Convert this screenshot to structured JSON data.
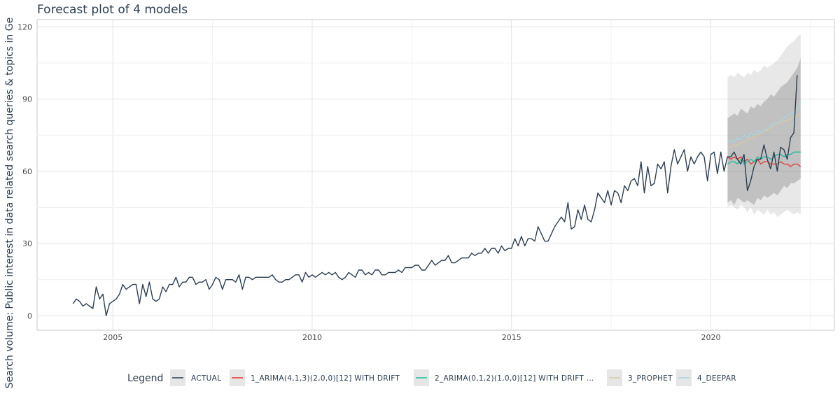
{
  "chart_data": {
    "type": "line",
    "title": "Forecast plot of 4 models",
    "xlabel": "",
    "ylabel": "Search volume: Public interest in data related search queries & topics in Ge",
    "xlim": [
      2003.1,
      2023.1
    ],
    "ylim": [
      -6,
      123
    ],
    "xticks": [
      2005,
      2010,
      2015,
      2020
    ],
    "yticks": [
      0,
      30,
      60,
      90,
      120
    ],
    "grid": true,
    "legend_position": "bottom",
    "legend_title": "Legend",
    "actual": {
      "name": "ACTUAL",
      "color": "#2c3e50",
      "start": 2004.0,
      "step": 0.0833333,
      "values": [
        5,
        7,
        6,
        4,
        5,
        4,
        3,
        12,
        7,
        9,
        0,
        5,
        6,
        7,
        9,
        13,
        11,
        12,
        13,
        13,
        5,
        13,
        8,
        14,
        7,
        6,
        7,
        12,
        10,
        13,
        13,
        16,
        12,
        14,
        14,
        16,
        16,
        13,
        14,
        14,
        15,
        11,
        13,
        16,
        15,
        11,
        15,
        15,
        15,
        14,
        17,
        11,
        16,
        16,
        15,
        16,
        16,
        16,
        16,
        16,
        17,
        15,
        14,
        14,
        15,
        15,
        16,
        17,
        17,
        14,
        18,
        16,
        17,
        16,
        17,
        18,
        17,
        18,
        17,
        18,
        16,
        15,
        16,
        18,
        17,
        16,
        19,
        19,
        17,
        18,
        17,
        19,
        19,
        17,
        17,
        18,
        18,
        18,
        19,
        18,
        20,
        20,
        20,
        21,
        21,
        19,
        19,
        21,
        23,
        21,
        22,
        23,
        23,
        25,
        22,
        22,
        23,
        24,
        24,
        24,
        26,
        25,
        26,
        26,
        28,
        26,
        28,
        28,
        26,
        29,
        27,
        28,
        28,
        32,
        29,
        33,
        29,
        32,
        32,
        31,
        37,
        34,
        31,
        31,
        34,
        37,
        39,
        41,
        39,
        47,
        36,
        37,
        44,
        40,
        46,
        40,
        39,
        44,
        51,
        49,
        47,
        52,
        46,
        52,
        51,
        47,
        54,
        52,
        56,
        57,
        54,
        64,
        51,
        62,
        54,
        55,
        63,
        61,
        64,
        51,
        62,
        69,
        63,
        66,
        69,
        60,
        66,
        63,
        66,
        68,
        66,
        56,
        67,
        68,
        59,
        68,
        60,
        66,
        66,
        68,
        65,
        63,
        67,
        52,
        56,
        62,
        65,
        65,
        71,
        65,
        61,
        68,
        60,
        70,
        69,
        65,
        74,
        76,
        100
      ]
    },
    "forecast_start": 2020.42,
    "forecast_step": 0.0833333,
    "bands_outer": {
      "upper": [
        99,
        100,
        99,
        101,
        100,
        99,
        101,
        100,
        102,
        101,
        102,
        104,
        103,
        104,
        105,
        106,
        108,
        110,
        112,
        113,
        114,
        116,
        117
      ],
      "lower": [
        45,
        46,
        45,
        44,
        46,
        45,
        43,
        45,
        42,
        44,
        43,
        42,
        44,
        42,
        43,
        41,
        42,
        43,
        44,
        43,
        42,
        43,
        42
      ]
    },
    "bands_inner": {
      "upper": [
        82,
        83,
        84,
        83,
        86,
        85,
        84,
        87,
        86,
        88,
        87,
        89,
        90,
        92,
        91,
        93,
        95,
        96,
        97,
        99,
        101,
        103,
        107
      ],
      "lower": [
        47,
        48,
        46,
        49,
        48,
        47,
        48,
        47,
        46,
        49,
        48,
        50,
        49,
        50,
        51,
        50,
        52,
        54,
        53,
        55,
        55,
        56,
        57
      ]
    },
    "series": [
      {
        "name": "1_ARIMA(4,1,3)(2,0,0)[12] WITH DRIFT",
        "color": "#e3342f",
        "values": [
          66,
          65,
          66,
          65,
          66,
          64,
          65,
          63,
          64,
          65,
          63,
          64,
          64,
          63,
          63,
          63,
          64,
          63,
          63,
          62,
          63,
          63,
          62
        ]
      },
      {
        "name": "2_ARIMA(0,1,2)(1,0,0)[12] WITH DRIFT ...",
        "color": "#18bc9c",
        "values": [
          63,
          64,
          64,
          63,
          65,
          63,
          64,
          65,
          64,
          66,
          65,
          66,
          66,
          65,
          66,
          67,
          67,
          66,
          67,
          67,
          68,
          68,
          68
        ]
      },
      {
        "name": "3_PROPHET",
        "color": "#d8c9a3",
        "values": [
          70,
          70,
          71,
          71,
          72,
          72,
          73,
          74,
          74,
          75,
          76,
          77,
          77,
          78,
          79,
          80,
          80,
          81,
          81,
          82,
          83,
          83,
          84
        ]
      },
      {
        "name": "4_DEEPAR",
        "color": "#a6d4e0",
        "values": [
          72,
          73,
          72,
          74,
          73,
          75,
          74,
          76,
          75,
          77,
          76,
          77,
          78,
          79,
          80,
          80,
          81,
          82,
          83,
          84,
          84,
          86,
          89
        ]
      }
    ]
  }
}
